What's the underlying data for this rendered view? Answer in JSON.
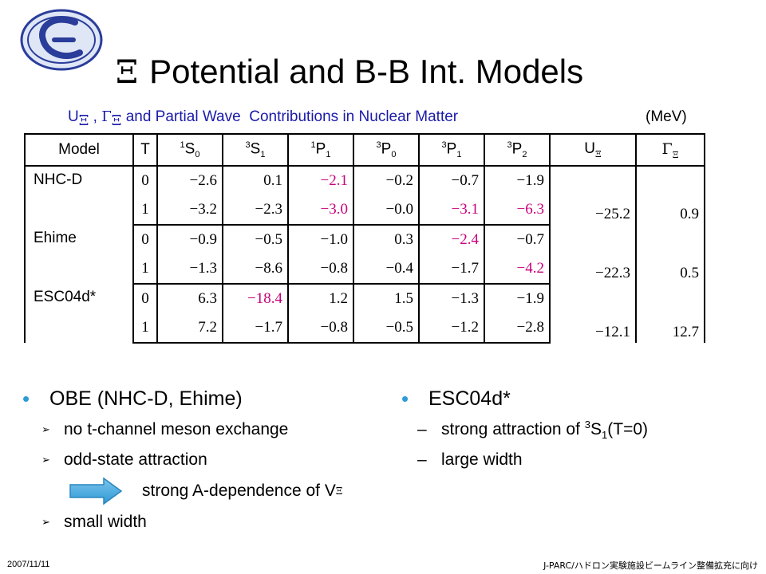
{
  "slide": {
    "title_symbol": "Ξ",
    "title_text": "Potential and B-B Int. Models",
    "subtitle_part1": "U",
    "subtitle_sub_xi": "Ξ",
    "subtitle_comma": " , ",
    "subtitle_gamma": "Γ",
    "subtitle_part2": " and Partial Wave  Contributions in Nuclear Matter",
    "unit": "(MeV)"
  },
  "table": {
    "headers": {
      "model": "Model",
      "t": "T",
      "h1_sup": "1",
      "h1_main": "S",
      "h1_sub": "0",
      "h2_sup": "3",
      "h2_main": "S",
      "h2_sub": "1",
      "h3_sup": "1",
      "h3_main": "P",
      "h3_sub": "1",
      "h4_sup": "3",
      "h4_main": "P",
      "h4_sub": "0",
      "h5_sup": "3",
      "h5_main": "P",
      "h5_sub": "1",
      "h6_sup": "3",
      "h6_main": "P",
      "h6_sub": "2",
      "u_main": "U",
      "u_sub": "Ξ",
      "g_main": "Γ",
      "g_sub": "Ξ"
    },
    "models": [
      {
        "name": "NHC-D",
        "rows": [
          {
            "t": "0",
            "vals": [
              "−2.6",
              "0.1",
              "−2.1",
              "−0.2",
              "−0.7",
              "−1.9"
            ]
          },
          {
            "t": "1",
            "vals": [
              "−3.2",
              "−2.3",
              "−3.0",
              "−0.0",
              "−3.1",
              "−6.3"
            ]
          }
        ],
        "u": "−25.2",
        "gamma": "0.9"
      },
      {
        "name": "Ehime",
        "rows": [
          {
            "t": "0",
            "vals": [
              "−0.9",
              "−0.5",
              "−1.0",
              "0.3",
              "−2.4",
              "−0.7"
            ]
          },
          {
            "t": "1",
            "vals": [
              "−1.3",
              "−8.6",
              "−0.8",
              "−0.4",
              "−1.7",
              "−4.2"
            ]
          }
        ],
        "u": "−22.3",
        "gamma": "0.5"
      },
      {
        "name": "ESC04d*",
        "rows": [
          {
            "t": "0",
            "vals": [
              "6.3",
              "−18.4",
              "1.2",
              "1.5",
              "−1.3",
              "−1.9"
            ]
          },
          {
            "t": "1",
            "vals": [
              "7.2",
              "−1.7",
              "−0.8",
              "−0.5",
              "−1.2",
              "−2.8"
            ]
          }
        ],
        "u": "−12.1",
        "gamma": "12.7"
      }
    ],
    "highlight_color": "#c8007a"
  },
  "left_bullets": {
    "main": "OBE (NHC-D, Ehime)",
    "sub1": "no t-channel meson exchange",
    "sub2": "odd-state attraction",
    "arrow_text": "strong A-dependence of V",
    "arrow_sub": "Ξ",
    "sub3": "small width"
  },
  "right_bullets": {
    "main": "ESC04d*",
    "sub1_a": "strong attraction of ",
    "sub1_sup": "3",
    "sub1_b": "S",
    "sub1_sub": "1",
    "sub1_c": "(T=0)",
    "sub2": "large width"
  },
  "footer": {
    "date": "2007/11/11",
    "right": "J-PARC/ハドロン実験施設ビームライン整備拡充に向け"
  },
  "icons": {
    "logo": "xi-logo",
    "bullet": "dot-bullet",
    "chevron": "chevron-bullet",
    "arrow": "right-arrow-icon"
  },
  "colors": {
    "bullet": "#2f9ad6",
    "subtitle": "#1a1aa8",
    "logo": "#2a3d9a",
    "arrow": "#2f9ad6"
  }
}
